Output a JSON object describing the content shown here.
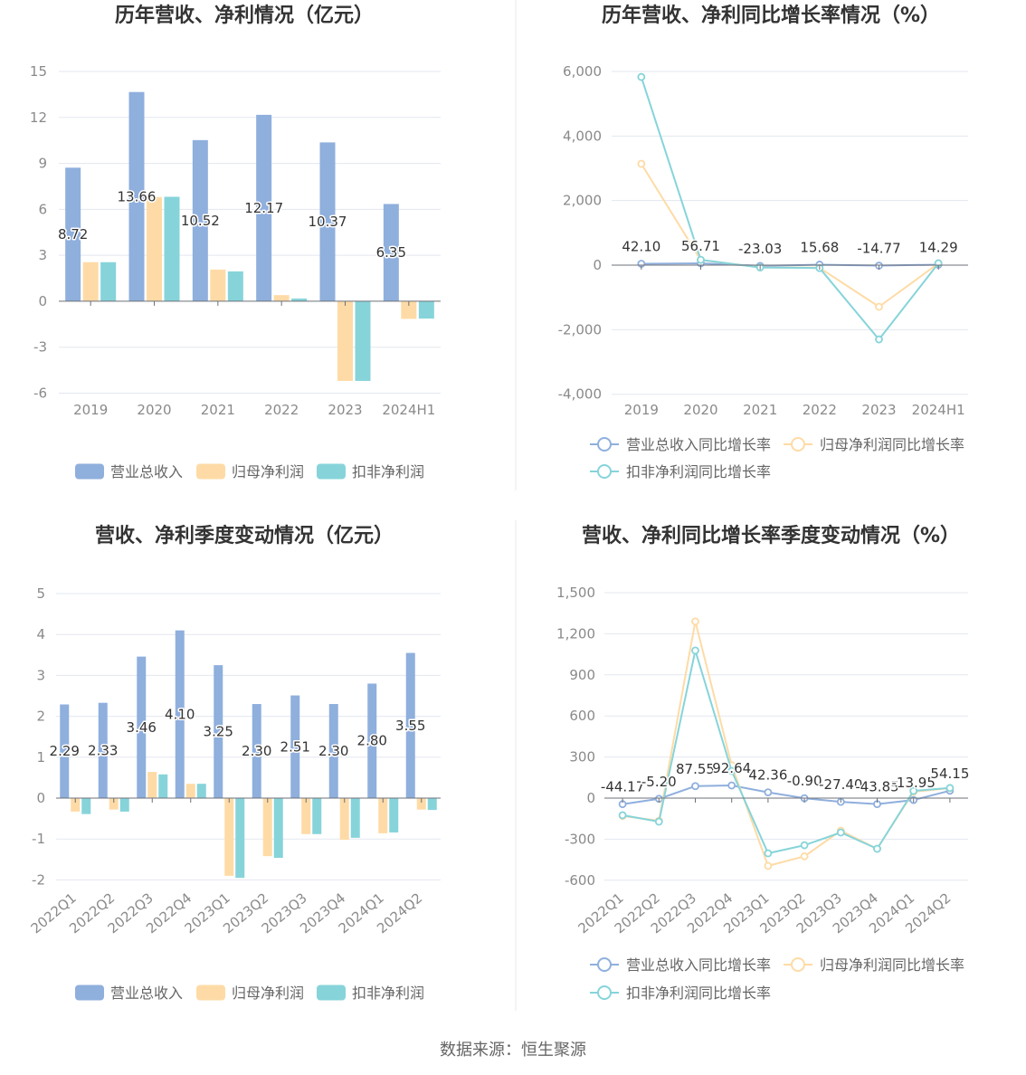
{
  "footer": {
    "source": "数据来源：恒生聚源"
  },
  "chart_data": [
    {
      "type": "bar",
      "title": "历年营收、净利情况（亿元）",
      "categories": [
        "2019",
        "2020",
        "2021",
        "2022",
        "2023",
        "2024H1"
      ],
      "ylim": [
        -6,
        15
      ],
      "ytick_labels": [
        "15",
        "12",
        "9",
        "6",
        "3",
        "0",
        "-3",
        "-6"
      ],
      "grid": true,
      "legend_position": "bottom",
      "series": [
        {
          "name": "营业总收入",
          "color": "#8fafdd",
          "values": [
            8.72,
            13.66,
            10.52,
            12.17,
            10.37,
            6.35
          ],
          "labels": [
            "8.72",
            "13.66",
            "10.52",
            "12.17",
            "10.37",
            "6.35"
          ]
        },
        {
          "name": "归母净利润",
          "color": "#fedba6",
          "values": [
            2.55,
            6.8,
            2.07,
            0.4,
            -5.2,
            -1.15
          ]
        },
        {
          "name": "扣非净利润",
          "color": "#86d4da",
          "values": [
            2.55,
            6.82,
            1.95,
            0.18,
            -5.2,
            -1.13
          ]
        }
      ]
    },
    {
      "type": "line",
      "title": "历年营收、净利同比增长率情况（%）",
      "categories": [
        "2019",
        "2020",
        "2021",
        "2022",
        "2023",
        "2024H1"
      ],
      "ylim": [
        -4000,
        6000
      ],
      "ytick_labels": [
        "6,000",
        "4,000",
        "2,000",
        "0",
        "-2,000",
        "-4,000"
      ],
      "grid": true,
      "legend_position": "bottom",
      "series": [
        {
          "name": "营业总收入同比增长率",
          "color": "#8fafdd",
          "values": [
            42.1,
            56.71,
            -23.03,
            15.68,
            -14.77,
            14.29
          ],
          "labels": [
            "42.10",
            "56.71",
            "-23.03",
            "15.68",
            "-14.77",
            "14.29"
          ]
        },
        {
          "name": "归母净利润同比增长率",
          "color": "#fedba6",
          "values": [
            3140,
            160,
            -70,
            -80,
            -1290,
            55
          ]
        },
        {
          "name": "扣非净利润同比增长率",
          "color": "#86d4da",
          "values": [
            5830,
            165,
            -71,
            -90,
            -2300,
            58
          ]
        }
      ]
    },
    {
      "type": "bar",
      "title": "营收、净利季度变动情况（亿元）",
      "categories": [
        "2022Q1",
        "2022Q2",
        "2022Q3",
        "2022Q4",
        "2023Q1",
        "2023Q2",
        "2023Q3",
        "2023Q4",
        "2024Q1",
        "2024Q2"
      ],
      "ylim": [
        -2,
        5
      ],
      "ytick_labels": [
        "5",
        "4",
        "3",
        "2",
        "1",
        "0",
        "-1",
        "-2"
      ],
      "grid": true,
      "legend_position": "bottom",
      "series": [
        {
          "name": "营业总收入",
          "color": "#8fafdd",
          "values": [
            2.29,
            2.33,
            3.46,
            4.1,
            3.25,
            2.3,
            2.51,
            2.3,
            2.8,
            3.55
          ],
          "labels": [
            "2.29",
            "2.33",
            "3.46",
            "4.10",
            "3.25",
            "2.30",
            "2.51",
            "2.30",
            "2.80",
            "3.55"
          ]
        },
        {
          "name": "归母净利润",
          "color": "#fedba6",
          "values": [
            -0.33,
            -0.28,
            0.64,
            0.35,
            -1.9,
            -1.42,
            -0.88,
            -1.02,
            -0.86,
            -0.28
          ]
        },
        {
          "name": "扣非净利润",
          "color": "#86d4da",
          "values": [
            -0.39,
            -0.33,
            0.58,
            0.35,
            -1.95,
            -1.46,
            -0.88,
            -0.97,
            -0.84,
            -0.29
          ]
        }
      ]
    },
    {
      "type": "line",
      "title": "营收、净利同比增长率季度变动情况（%）",
      "categories": [
        "2022Q1",
        "2022Q2",
        "2022Q3",
        "2022Q4",
        "2023Q1",
        "2023Q2",
        "2023Q3",
        "2023Q4",
        "2024Q1",
        "2024Q2"
      ],
      "ylim": [
        -600,
        1500
      ],
      "ytick_labels": [
        "1,500",
        "1,200",
        "900",
        "600",
        "300",
        "0",
        "-300",
        "-600"
      ],
      "grid": true,
      "legend_position": "bottom",
      "series": [
        {
          "name": "营业总收入同比增长率",
          "color": "#8fafdd",
          "values": [
            -44.17,
            -5.2,
            87.55,
            92.64,
            42.36,
            -0.9,
            -27.4,
            -43.85,
            -13.95,
            54.15
          ],
          "labels": [
            "-44.17",
            "-5.20",
            "87.55",
            "92.64",
            "42.36",
            "-0.90",
            "-27.40",
            "-43.85",
            "-13.95",
            "54.15"
          ]
        },
        {
          "name": "归母净利润同比增长率",
          "color": "#fedba6",
          "values": [
            -130,
            -165,
            1290,
            240,
            -495,
            -425,
            -238,
            -370,
            46,
            73
          ]
        },
        {
          "name": "扣非净利润同比增长率",
          "color": "#86d4da",
          "values": [
            -125,
            -172,
            1078,
            198,
            -403,
            -344,
            -251,
            -370,
            53,
            74
          ]
        }
      ]
    }
  ]
}
